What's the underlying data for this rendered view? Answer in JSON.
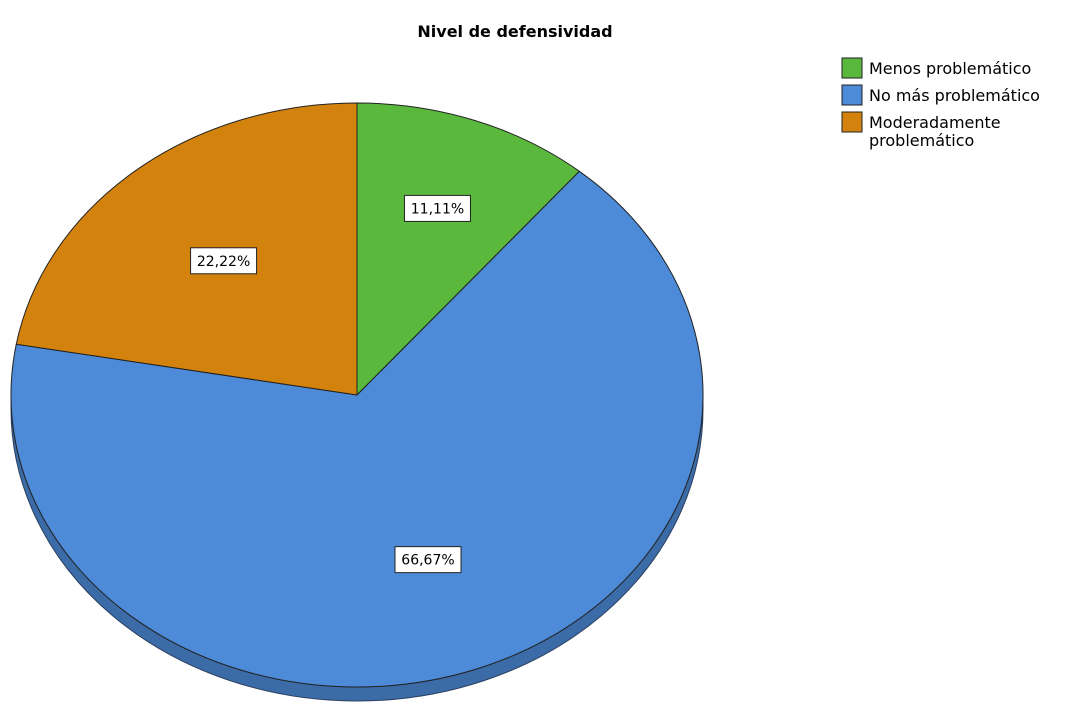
{
  "chart_data": {
    "type": "pie",
    "title": "Nivel de defensividad",
    "legend_position": "top-right",
    "slices": [
      {
        "label": "Menos problemático",
        "legend_lines": [
          "Menos problemático"
        ],
        "value": 11.11,
        "data_label": "11,11%",
        "color": "#5ab93c"
      },
      {
        "label": "No más problemático",
        "legend_lines": [
          "No más problemático"
        ],
        "value": 66.67,
        "data_label": "66,67%",
        "color": "#4d8bd8"
      },
      {
        "label": "Moderadamente problemático",
        "legend_lines": [
          "Moderadamente",
          "problemático"
        ],
        "value": 22.22,
        "data_label": "22,22%",
        "color": "#d4820e"
      }
    ],
    "start_angle_deg": 0,
    "direction": "clockwise",
    "tilted_3d": true
  }
}
